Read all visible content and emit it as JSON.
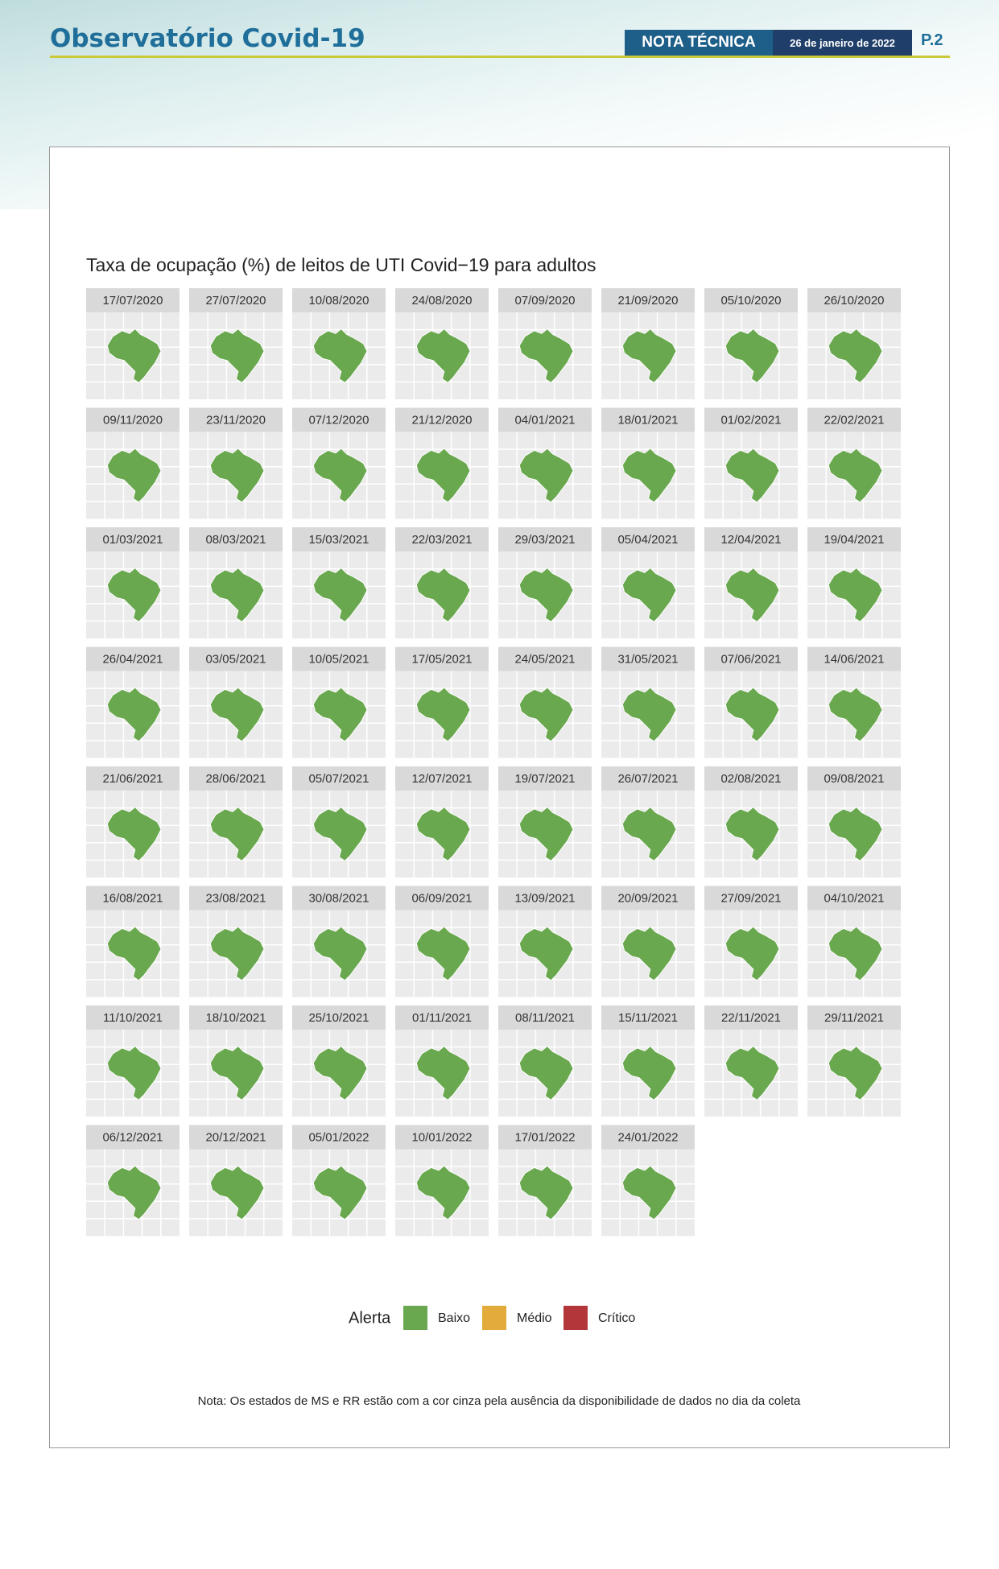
{
  "header": {
    "title": "Observatório Covid-19",
    "badge": "NOTA TÉCNICA",
    "date": "26 de janeiro de 2022",
    "page": "P.2"
  },
  "figure": {
    "title": "Taxa de ocupação (%) de leitos de UTI Covid−19 para adultos",
    "panels": [
      "17/07/2020",
      "27/07/2020",
      "10/08/2020",
      "24/08/2020",
      "07/09/2020",
      "21/09/2020",
      "05/10/2020",
      "26/10/2020",
      "09/11/2020",
      "23/11/2020",
      "07/12/2020",
      "21/12/2020",
      "04/01/2021",
      "18/01/2021",
      "01/02/2021",
      "22/02/2021",
      "01/03/2021",
      "08/03/2021",
      "15/03/2021",
      "22/03/2021",
      "29/03/2021",
      "05/04/2021",
      "12/04/2021",
      "19/04/2021",
      "26/04/2021",
      "03/05/2021",
      "10/05/2021",
      "17/05/2021",
      "24/05/2021",
      "31/05/2021",
      "07/06/2021",
      "14/06/2021",
      "21/06/2021",
      "28/06/2021",
      "05/07/2021",
      "12/07/2021",
      "19/07/2021",
      "26/07/2021",
      "02/08/2021",
      "09/08/2021",
      "16/08/2021",
      "23/08/2021",
      "30/08/2021",
      "06/09/2021",
      "13/09/2021",
      "20/09/2021",
      "27/09/2021",
      "04/10/2021",
      "11/10/2021",
      "18/10/2021",
      "25/10/2021",
      "01/11/2021",
      "08/11/2021",
      "15/11/2021",
      "22/11/2021",
      "29/11/2021",
      "06/12/2021",
      "20/12/2021",
      "05/01/2022",
      "10/01/2022",
      "17/01/2022",
      "24/01/2022"
    ],
    "legend": {
      "title": "Alerta",
      "items": [
        {
          "label": "Baixo",
          "color": "#6aa84f"
        },
        {
          "label": "Médio",
          "color": "#e2ab3b"
        },
        {
          "label": "Crítico",
          "color": "#b3373a"
        }
      ]
    },
    "note": "Nota: Os estados de MS e RR estão com a cor cinza pela ausência da disponibilidade de dados no dia da coleta"
  }
}
